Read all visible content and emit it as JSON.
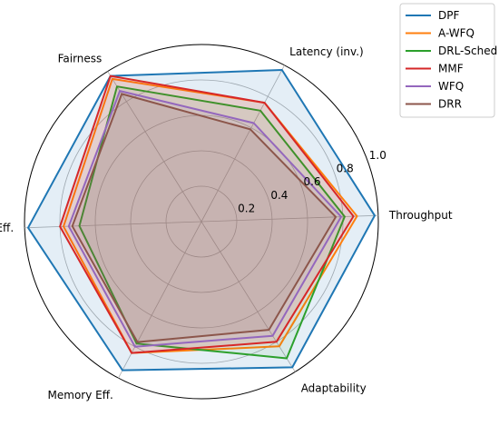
{
  "chart_data": {
    "type": "radar",
    "axes": [
      "Throughput",
      "Latency (inv.)",
      "Fairness",
      "CPU Eff.",
      "Memory Eff.",
      "Adaptability"
    ],
    "rlim": [
      0,
      1.0
    ],
    "rticks": [
      0.2,
      0.4,
      0.6,
      0.8,
      1.0
    ],
    "rtick_labels": [
      "0.2",
      "0.4",
      "0.6",
      "0.8",
      "1.0"
    ],
    "grid": true,
    "legend_position": "top-right",
    "series": [
      {
        "name": "DPF",
        "color": "#1f77b4",
        "values": [
          0.98,
          0.97,
          0.97,
          0.98,
          0.95,
          0.97
        ],
        "filled": true
      },
      {
        "name": "A-WFQ",
        "color": "#ff7f0e",
        "values": [
          0.88,
          0.76,
          0.95,
          0.78,
          0.84,
          0.83
        ],
        "filled": false
      },
      {
        "name": "DRL-Sched",
        "color": "#2ca02c",
        "values": [
          0.81,
          0.71,
          0.9,
          0.69,
          0.78,
          0.91
        ],
        "filled": false
      },
      {
        "name": "MMF",
        "color": "#d62728",
        "values": [
          0.86,
          0.76,
          0.97,
          0.8,
          0.84,
          0.8
        ],
        "filled": true
      },
      {
        "name": "WFQ",
        "color": "#9467bd",
        "values": [
          0.79,
          0.63,
          0.87,
          0.75,
          0.8,
          0.76
        ],
        "filled": false
      },
      {
        "name": "DRR",
        "color": "#8c564b",
        "values": [
          0.76,
          0.59,
          0.85,
          0.73,
          0.77,
          0.72
        ],
        "filled": true
      }
    ]
  }
}
